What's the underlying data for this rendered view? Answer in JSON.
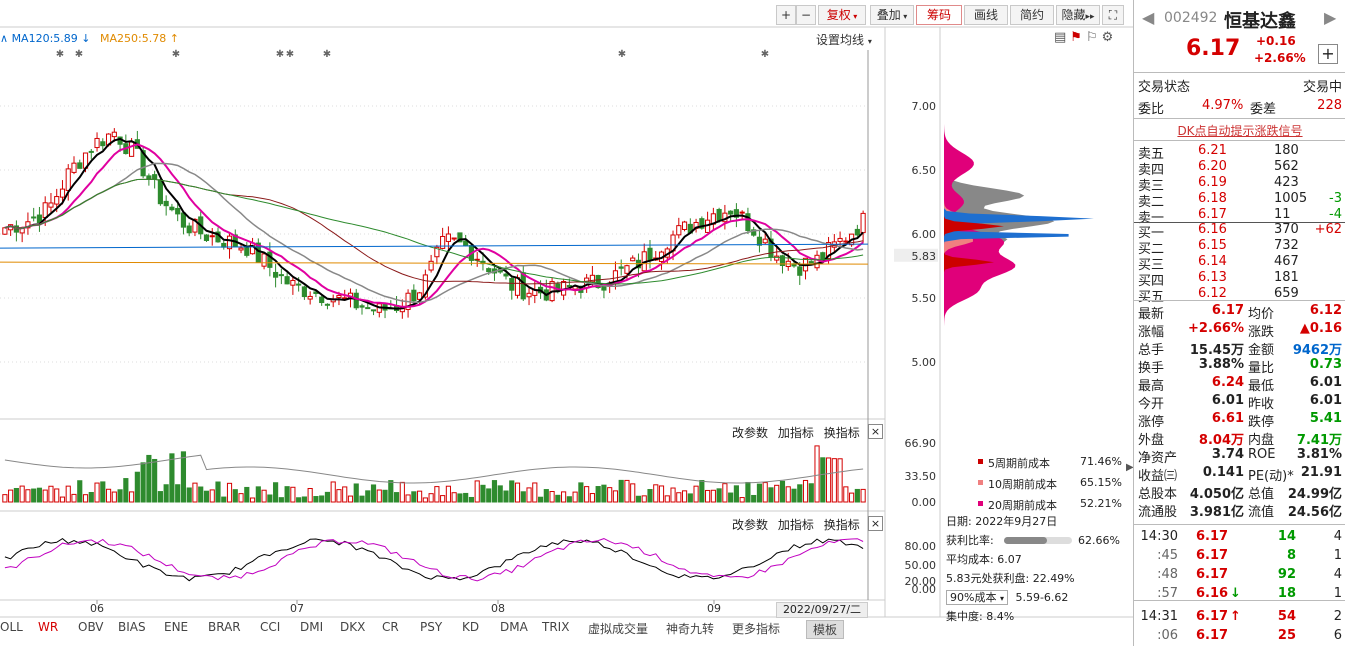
{
  "toolbar": {
    "plus": "+",
    "minus": "−",
    "fuquan": "复权",
    "diejia": "叠加",
    "chouma": "筹码",
    "huaxian": "画线",
    "jianyue": "简约",
    "yincang": "隐藏",
    "set_ma": "设置均线"
  },
  "ma_legend": [
    {
      "label": "MA120:5.89",
      "arrow": "↓",
      "color": "#0066cc"
    },
    {
      "label": "MA250:5.78",
      "arrow": "↑",
      "color": "#e08a00"
    }
  ],
  "price_axis": [
    "7.00",
    "6.50",
    "6.00",
    "5.83",
    "5.50",
    "5.00"
  ],
  "vol_axis": [
    "66.90",
    "33.50",
    "0.00"
  ],
  "osc_axis": [
    "80.00",
    "50.00",
    "20.00",
    "0.00"
  ],
  "time_labels": [
    "06",
    "07",
    "08",
    "09"
  ],
  "date_badge": "2022/09/27/二",
  "vol_panel": {
    "modify": "改参数",
    "add": "加指标",
    "switch": "换指标",
    "close": "×"
  },
  "osc_panel": {
    "modify": "改参数",
    "add": "加指标",
    "switch": "换指标",
    "close": "×"
  },
  "bottom_tabs": [
    "OLL",
    "WR",
    "OBV",
    "BIAS",
    "ENE",
    "BRAR",
    "CCI",
    "DMI",
    "DKX",
    "CR",
    "PSY",
    "KD",
    "DMA",
    "TRIX",
    "虚拟成交量",
    "神奇九转",
    "更多指标",
    "模板"
  ],
  "chip_legend": [
    {
      "label": "5周期前成本",
      "value": "71.46%",
      "color": "#cc0000"
    },
    {
      "label": "10周期前成本",
      "value": "65.15%",
      "color": "#f08080"
    },
    {
      "label": "20周期前成本",
      "value": "52.21%",
      "color": "#e0007a"
    }
  ],
  "chip_info": {
    "date": "日期: 2022年9月27日",
    "profit_label": "获利比率:",
    "profit_value": "62.66%",
    "profit_fraction": 0.6266,
    "avg_cost": "平均成本: 6.07",
    "profit_at": "5.83元处获利盘: 22.49%",
    "cost_select": "90%成本",
    "cost_range": "5.59-6.62",
    "concentration": "集中度: 8.4%"
  },
  "quote": {
    "code": "002492",
    "name": "恒基达鑫",
    "price": "6.17",
    "change": "+0.16",
    "change_pct": "+2.66%",
    "trade_status_label": "交易状态",
    "trade_status": "交易中",
    "weibi_label": "委比",
    "weibi": "4.97%",
    "weicha_label": "委差",
    "weicha": "228",
    "dk_link": "DK点自动提示涨跌信号",
    "asks": [
      {
        "label": "卖五",
        "price": "6.21",
        "vol": "180",
        "chg": ""
      },
      {
        "label": "卖四",
        "price": "6.20",
        "vol": "562",
        "chg": ""
      },
      {
        "label": "卖三",
        "price": "6.19",
        "vol": "423",
        "chg": ""
      },
      {
        "label": "卖二",
        "price": "6.18",
        "vol": "1005",
        "chg": "-3"
      },
      {
        "label": "卖一",
        "price": "6.17",
        "vol": "11",
        "chg": "-4"
      }
    ],
    "bids": [
      {
        "label": "买一",
        "price": "6.16",
        "vol": "370",
        "chg": "+62"
      },
      {
        "label": "买二",
        "price": "6.15",
        "vol": "732",
        "chg": ""
      },
      {
        "label": "买三",
        "price": "6.14",
        "vol": "467",
        "chg": ""
      },
      {
        "label": "买四",
        "price": "6.13",
        "vol": "181",
        "chg": ""
      },
      {
        "label": "买五",
        "price": "6.12",
        "vol": "659",
        "chg": ""
      }
    ],
    "stats": [
      {
        "l1": "最新",
        "v1": "6.17",
        "c1": "red",
        "l2": "均价",
        "v2": "6.12",
        "c2": "red"
      },
      {
        "l1": "涨幅",
        "v1": "+2.66%",
        "c1": "red",
        "l2": "涨跌",
        "v2": "▲0.16",
        "c2": "red"
      },
      {
        "l1": "总手",
        "v1": "15.45万",
        "c1": "",
        "l2": "金额",
        "v2": "9462万",
        "c2": "blue"
      },
      {
        "l1": "换手",
        "v1": "3.88%",
        "c1": "",
        "l2": "量比",
        "v2": "0.73",
        "c2": "green"
      },
      {
        "l1": "最高",
        "v1": "6.24",
        "c1": "red",
        "l2": "最低",
        "v2": "6.01",
        "c2": ""
      },
      {
        "l1": "今开",
        "v1": "6.01",
        "c1": "",
        "l2": "昨收",
        "v2": "6.01",
        "c2": ""
      },
      {
        "l1": "涨停",
        "v1": "6.61",
        "c1": "red",
        "l2": "跌停",
        "v2": "5.41",
        "c2": "green"
      },
      {
        "l1": "外盘",
        "v1": "8.04万",
        "c1": "red",
        "l2": "内盘",
        "v2": "7.41万",
        "c2": "green"
      },
      {
        "l1": "净资产",
        "v1": "3.74",
        "c1": "",
        "l2": "ROE",
        "v2": "3.81%",
        "c2": ""
      },
      {
        "l1": "收益㈢",
        "v1": "0.141",
        "c1": "",
        "l2": "PE(动)*",
        "v2": "21.91",
        "c2": ""
      },
      {
        "l1": "总股本",
        "v1": "4.050亿",
        "c1": "",
        "l2": "总值",
        "v2": "24.99亿",
        "c2": ""
      },
      {
        "l1": "流通股",
        "v1": "3.981亿",
        "c1": "",
        "l2": "流值",
        "v2": "24.56亿",
        "c2": ""
      }
    ],
    "ticks": [
      {
        "time": "14:30",
        "price": "6.17",
        "arrow": "",
        "vol": "14",
        "n": "4",
        "vc": "green"
      },
      {
        "time": ":45",
        "price": "6.17",
        "arrow": "",
        "vol": "8",
        "n": "1",
        "vc": "green"
      },
      {
        "time": ":48",
        "price": "6.17",
        "arrow": "",
        "vol": "92",
        "n": "4",
        "vc": "green"
      },
      {
        "time": ":57",
        "price": "6.16",
        "arrow": "↓",
        "vol": "18",
        "n": "1",
        "vc": "green"
      },
      {
        "time": "14:31",
        "price": "6.17",
        "arrow": "↑",
        "vol": "54",
        "n": "2",
        "vc": "red"
      },
      {
        "time": ":06",
        "price": "6.17",
        "arrow": "",
        "vol": "25",
        "n": "6",
        "vc": "red"
      }
    ]
  },
  "colors": {
    "up": "#d40000",
    "down": "#2e8b2e",
    "ma5": "#000000",
    "ma10": "#e000a0",
    "ma20": "#888888"
  }
}
